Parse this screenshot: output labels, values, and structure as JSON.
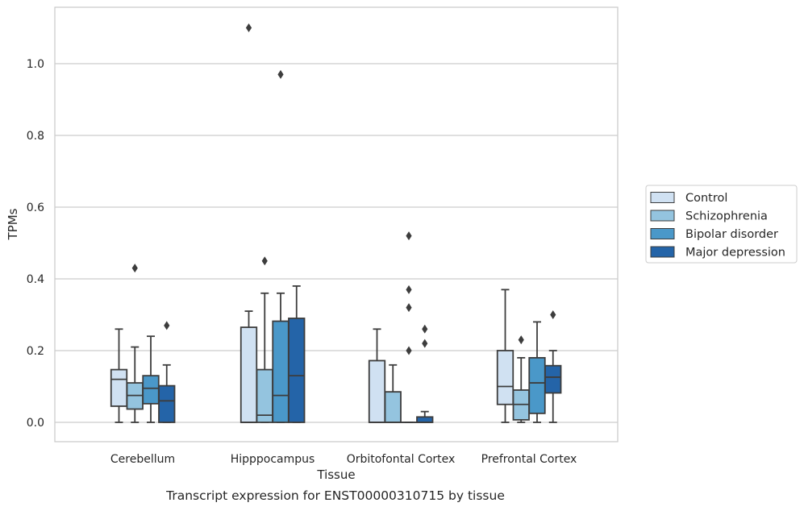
{
  "caption": "Transcript expression for ENST00000310715 by tissue",
  "chart_data": {
    "type": "box",
    "xlabel": "Tissue",
    "ylabel": "TPMs",
    "ylim": [
      -0.05,
      1.16
    ],
    "yticks": [
      0.0,
      0.2,
      0.4,
      0.6,
      0.8,
      1.0
    ],
    "ytick_labels": [
      "0.0",
      "0.2",
      "0.4",
      "0.6",
      "0.8",
      "1.0"
    ],
    "grid": true,
    "legend_position": "right",
    "categories": [
      "Cerebellum",
      "Hipppocampus",
      "Orbitofontal Cortex",
      "Prefrontal Cortex"
    ],
    "series": [
      {
        "name": "Control",
        "color": "#d0e1f2",
        "boxes": [
          {
            "whislo": 0.0,
            "q1": 0.045,
            "med": 0.12,
            "q3": 0.147,
            "whishi": 0.26,
            "fliers": []
          },
          {
            "whislo": 0.0,
            "q1": 0.0,
            "med": 0.0,
            "q3": 0.265,
            "whishi": 0.31,
            "fliers": [
              1.1
            ]
          },
          {
            "whislo": 0.0,
            "q1": 0.0,
            "med": 0.0,
            "q3": 0.172,
            "whishi": 0.26,
            "fliers": []
          },
          {
            "whislo": 0.0,
            "q1": 0.05,
            "med": 0.1,
            "q3": 0.2,
            "whishi": 0.37,
            "fliers": []
          }
        ]
      },
      {
        "name": "Schizophrenia",
        "color": "#94c4df",
        "boxes": [
          {
            "whislo": 0.0,
            "q1": 0.037,
            "med": 0.075,
            "q3": 0.11,
            "whishi": 0.21,
            "fliers": [
              0.43
            ]
          },
          {
            "whislo": 0.0,
            "q1": 0.0,
            "med": 0.02,
            "q3": 0.147,
            "whishi": 0.36,
            "fliers": [
              0.45
            ]
          },
          {
            "whislo": 0.0,
            "q1": 0.0,
            "med": 0.0,
            "q3": 0.085,
            "whishi": 0.16,
            "fliers": []
          },
          {
            "whislo": 0.0,
            "q1": 0.007,
            "med": 0.05,
            "q3": 0.09,
            "whishi": 0.18,
            "fliers": [
              0.23
            ]
          }
        ]
      },
      {
        "name": "Bipolar disorder",
        "color": "#4a98c9",
        "boxes": [
          {
            "whislo": 0.0,
            "q1": 0.052,
            "med": 0.095,
            "q3": 0.13,
            "whishi": 0.24,
            "fliers": []
          },
          {
            "whislo": 0.0,
            "q1": 0.0,
            "med": 0.075,
            "q3": 0.282,
            "whishi": 0.36,
            "fliers": [
              0.97
            ]
          },
          {
            "whislo": 0.0,
            "q1": 0.0,
            "med": 0.0,
            "q3": 0.0,
            "whishi": 0.0,
            "fliers": [
              0.37,
              0.32,
              0.52,
              0.2
            ]
          },
          {
            "whislo": 0.0,
            "q1": 0.025,
            "med": 0.11,
            "q3": 0.18,
            "whishi": 0.28,
            "fliers": []
          }
        ]
      },
      {
        "name": "Major depression",
        "color": "#2464a8",
        "boxes": [
          {
            "whislo": 0.0,
            "q1": 0.0,
            "med": 0.06,
            "q3": 0.102,
            "whishi": 0.16,
            "fliers": [
              0.27
            ]
          },
          {
            "whislo": 0.0,
            "q1": 0.0,
            "med": 0.13,
            "q3": 0.29,
            "whishi": 0.38,
            "fliers": []
          },
          {
            "whislo": 0.0,
            "q1": 0.0,
            "med": 0.0,
            "q3": 0.015,
            "whishi": 0.03,
            "fliers": [
              0.26,
              0.22
            ]
          },
          {
            "whislo": 0.0,
            "q1": 0.082,
            "med": 0.126,
            "q3": 0.158,
            "whishi": 0.2,
            "fliers": [
              0.3
            ]
          }
        ]
      }
    ]
  }
}
